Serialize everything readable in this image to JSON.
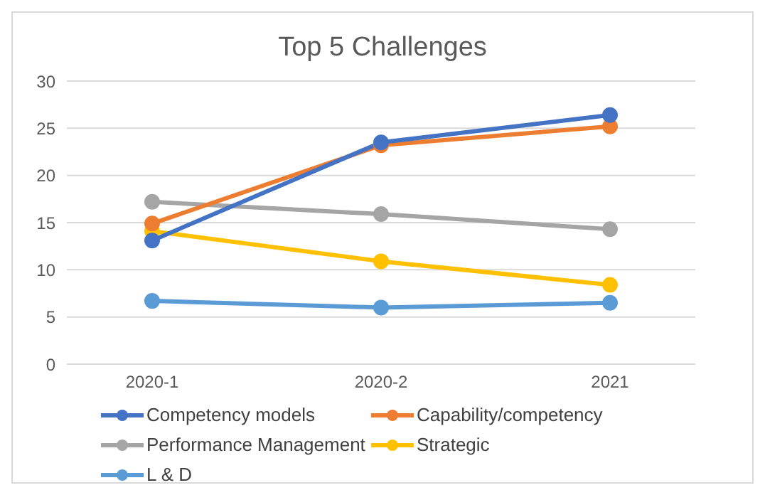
{
  "chart_data": {
    "type": "line",
    "title": "Top 5 Challenges",
    "categories": [
      "2020-1",
      "2020-2",
      "2021"
    ],
    "series": [
      {
        "name": "Competency models",
        "color": "#4472c4",
        "values": [
          13.1,
          23.5,
          26.4
        ]
      },
      {
        "name": "Capability/competency",
        "color": "#ed7d31",
        "values": [
          14.9,
          23.2,
          25.2
        ]
      },
      {
        "name": "Performance Management",
        "color": "#a5a5a5",
        "values": [
          17.2,
          15.9,
          14.3
        ]
      },
      {
        "name": "Strategic",
        "color": "#ffc000",
        "values": [
          14.1,
          10.9,
          8.4
        ]
      },
      {
        "name": "L & D",
        "color": "#5b9bd5",
        "values": [
          6.7,
          6.0,
          6.5
        ]
      }
    ],
    "ylim": [
      0,
      30
    ],
    "yticks": [
      0,
      5,
      10,
      15,
      20,
      25,
      30
    ],
    "grid": "y",
    "legend": "bottom",
    "marker": "circle",
    "line_style": "solid"
  }
}
